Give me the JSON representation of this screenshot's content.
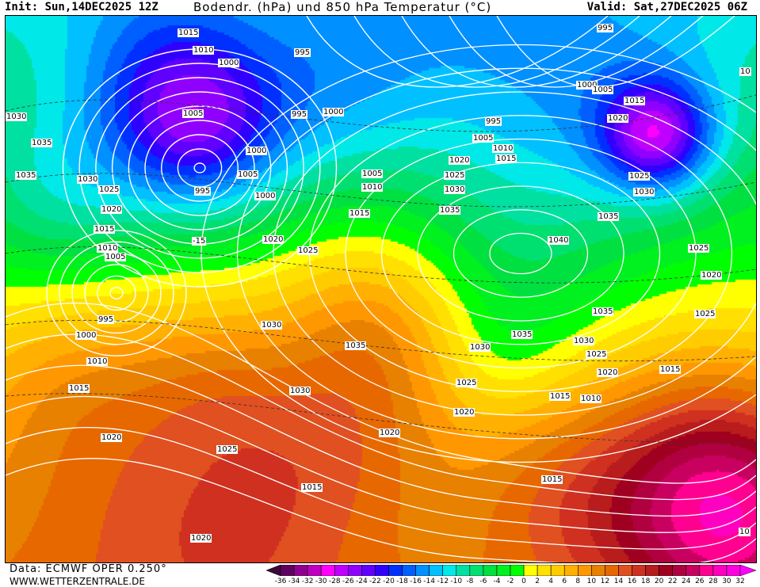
{
  "header": {
    "init": "Init: Sun,14DEC2025 12Z",
    "title": "Bodendr. (hPa) und 850 hPa Temperatur (°C)",
    "valid": "Valid: Sat,27DEC2025 06Z"
  },
  "footer": {
    "data_source": "Data: ECMWF OPER 0.250°",
    "website": "WWW.WETTERZENTRALE.DE"
  },
  "isobar_labels": [
    "1015",
    "1010",
    "1000",
    "995",
    "1005",
    "995",
    "1000",
    "1000",
    "1005",
    "995",
    "1000",
    "1030",
    "1035",
    "1035",
    "1030",
    "1025",
    "1020",
    "1015",
    "1010",
    "1005",
    "-15",
    "1020",
    "1025",
    "1005",
    "1010",
    "1015",
    "995",
    "1005",
    "1010",
    "1015",
    "1020",
    "1025",
    "1030",
    "1035",
    "1040",
    "995",
    "1000",
    "1005",
    "1015",
    "1020",
    "1025",
    "1030",
    "1035",
    "1025",
    "1020",
    "1025",
    "1030",
    "1035",
    "1030",
    "1035",
    "1035",
    "1030",
    "1025",
    "1020",
    "1015",
    "1015",
    "1010",
    "1025",
    "1020",
    "1020",
    "1030",
    "995",
    "1000",
    "1010",
    "1015",
    "1020",
    "1025",
    "1015",
    "1015",
    "1020",
    "10",
    "10"
  ],
  "legend": {
    "unit": "°C",
    "labels": [
      "-36",
      "-34",
      "-32",
      "-30",
      "-28",
      "-26",
      "-24",
      "-22",
      "-20",
      "-18",
      "-16",
      "-14",
      "-12",
      "-10",
      "-8",
      "-6",
      "-4",
      "-2",
      "0",
      "2",
      "4",
      "6",
      "8",
      "10",
      "12",
      "14",
      "16",
      "18",
      "20",
      "22",
      "24",
      "26",
      "28",
      "30",
      "32"
    ],
    "colors": [
      "#3a0a3a",
      "#600060",
      "#900090",
      "#c000c0",
      "#ff00ff",
      "#c000ff",
      "#9000ff",
      "#6000ff",
      "#3000ff",
      "#0030ff",
      "#0060ff",
      "#0090ff",
      "#00c0ff",
      "#00e8e8",
      "#00e0a0",
      "#00e070",
      "#00e040",
      "#00f020",
      "#00ff00",
      "#ffff00",
      "#ffe000",
      "#ffcc00",
      "#ffb000",
      "#ff9800",
      "#e88000",
      "#e86800",
      "#e05020",
      "#d03020",
      "#b81c1c",
      "#a00020",
      "#b00040",
      "#c80060",
      "#ff0090",
      "#ff00c0",
      "#ff00e0",
      "#ff00ff"
    ]
  }
}
